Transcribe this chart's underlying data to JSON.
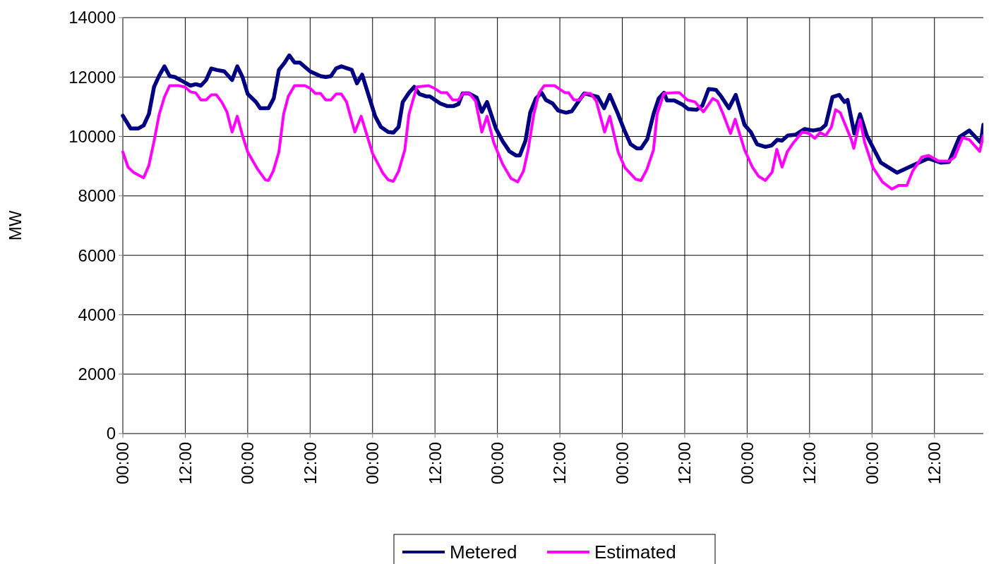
{
  "chart_data": {
    "type": "line",
    "ylabel": "MW",
    "xlim": [
      "--01-01T00:00",
      "--01-07T21:24"
    ],
    "ylim": [
      0,
      14000
    ],
    "xticks": [
      {
        "value": "--01-01T00:00",
        "label": "00:00"
      },
      {
        "value": "--01-01T12:00",
        "label": "12:00"
      },
      {
        "value": "--01-02T00:00",
        "label": "00:00"
      },
      {
        "value": "--01-02T12:00",
        "label": "12:00"
      },
      {
        "value": "--01-03T00:00",
        "label": "00:00"
      },
      {
        "value": "--01-03T12:00",
        "label": "12:00"
      },
      {
        "value": "--01-04T00:00",
        "label": "00:00"
      },
      {
        "value": "--01-04T12:00",
        "label": "12:00"
      },
      {
        "value": "--01-05T00:00",
        "label": "00:00"
      },
      {
        "value": "--01-05T12:00",
        "label": "12:00"
      },
      {
        "value": "--01-06T00:00",
        "label": "00:00"
      },
      {
        "value": "--01-06T12:00",
        "label": "12:00"
      },
      {
        "value": "--01-07T00:00",
        "label": "00:00"
      },
      {
        "value": "--01-07T12:00",
        "label": "12:00"
      }
    ],
    "yticks": [
      0,
      2000,
      4000,
      6000,
      8000,
      10000,
      12000,
      14000
    ],
    "grid": true,
    "legend": "bottom",
    "line_style": "solid",
    "marker": "none",
    "series": [
      {
        "name": "Metered",
        "color": "#000080",
        "x": [
          "--01-01T00:00",
          "--01-01T01:30",
          "--01-01T03:00",
          "--01-01T04:00",
          "--01-01T05:00",
          "--01-01T06:00",
          "--01-01T07:00",
          "--01-01T08:00",
          "--01-01T09:00",
          "--01-01T10:00",
          "--01-01T12:00",
          "--01-01T13:00",
          "--01-01T14:00",
          "--01-01T15:00",
          "--01-01T16:00",
          "--01-01T17:00",
          "--01-01T18:00",
          "--01-01T19:30",
          "--01-01T21:00",
          "--01-01T22:00",
          "--01-01T23:00",
          "--01-02T00:00",
          "--01-02T01:36",
          "--01-02T02:24",
          "--01-02T04:00",
          "--01-02T05:00",
          "--01-02T06:00",
          "--01-02T07:00",
          "--01-02T08:00",
          "--01-02T09:00",
          "--01-02T10:00",
          "--01-02T12:00",
          "--01-02T14:00",
          "--01-02T15:00",
          "--01-02T16:00",
          "--01-02T17:00",
          "--01-02T18:00",
          "--01-02T20:00",
          "--01-02T21:00",
          "--01-02T22:00",
          "--01-02T23:18",
          "--01-03T00:30",
          "--01-03T01:36",
          "--01-03T03:00",
          "--01-03T04:00",
          "--01-03T05:00",
          "--01-03T05:48",
          "--01-03T07:00",
          "--01-03T08:00",
          "--01-03T09:00",
          "--01-03T10:18",
          "--01-03T11:00",
          "--01-03T13:00",
          "--01-03T14:24",
          "--01-03T15:30",
          "--01-03T16:30",
          "--01-03T17:18",
          "--01-03T18:30",
          "--01-03T20:00",
          "--01-03T21:00",
          "--01-03T22:00",
          "--01-03T23:42",
          "--01-04T01:00",
          "--01-04T02:18",
          "--01-04T03:36",
          "--01-04T04:18",
          "--01-04T05:24",
          "--01-04T06:18",
          "--01-04T07:24",
          "--01-04T08:30",
          "--01-04T09:18",
          "--01-04T10:36",
          "--01-04T11:42",
          "--01-04T13:12",
          "--01-04T14:18",
          "--01-04T15:30",
          "--01-04T16:42",
          "--01-04T19:18",
          "--01-04T20:30",
          "--01-04T21:36",
          "--01-04T23:00",
          "--01-05T00:18",
          "--01-05T01:36",
          "--01-05T02:48",
          "--01-05T03:36",
          "--01-05T04:48",
          "--01-05T06:00",
          "--01-05T07:00",
          "--01-05T08:00",
          "--01-05T08:36",
          "--01-05T10:00",
          "--01-05T11:36",
          "--01-05T12:42",
          "--01-05T14:18",
          "--01-05T15:24",
          "--01-05T16:36",
          "--01-05T18:00",
          "--01-05T19:00",
          "--01-05T20:30",
          "--01-05T21:48",
          "--01-05T23:30",
          "--01-06T00:42",
          "--01-06T01:54",
          "--01-06T03:30",
          "--01-06T04:42",
          "--01-06T05:48",
          "--01-06T06:42",
          "--01-06T07:48",
          "--01-06T09:18",
          "--01-06T11:00",
          "--01-06T12:42",
          "--01-06T14:12",
          "--01-06T15:06",
          "--01-06T16:24",
          "--01-06T17:42",
          "--01-06T18:42",
          "--01-06T19:18",
          "--01-06T20:36",
          "--01-06T21:42",
          "--01-06T23:00",
          "--01-07T01:42",
          "--01-07T04:48",
          "--01-07T07:30",
          "--01-07T10:48",
          "--01-07T13:12",
          "--01-07T14:48",
          "--01-07T16:48",
          "--01-07T18:42",
          "--01-07T20:54",
          "--01-07T21:24"
        ],
        "values": [
          10700,
          10270,
          10270,
          10370,
          10750,
          11670,
          12050,
          12360,
          12030,
          12000,
          11810,
          11710,
          11760,
          11710,
          11900,
          12290,
          12240,
          12190,
          11900,
          12360,
          12000,
          11430,
          11160,
          10950,
          10950,
          11280,
          12240,
          12460,
          12730,
          12490,
          12490,
          12190,
          12030,
          12000,
          12030,
          12290,
          12360,
          12240,
          11790,
          12080,
          11350,
          10680,
          10320,
          10150,
          10130,
          10320,
          11160,
          11470,
          11670,
          11430,
          11350,
          11350,
          11110,
          11020,
          11020,
          11090,
          11450,
          11450,
          11310,
          10830,
          11160,
          10270,
          9840,
          9500,
          9360,
          9360,
          9860,
          10800,
          11280,
          11470,
          11230,
          11110,
          10870,
          10800,
          10850,
          11160,
          11450,
          11330,
          10950,
          11400,
          10830,
          10250,
          9740,
          9600,
          9600,
          9910,
          10750,
          11280,
          11470,
          11210,
          11210,
          11070,
          10920,
          10900,
          11040,
          11600,
          11570,
          11350,
          10950,
          11400,
          10390,
          10150,
          9740,
          9650,
          9700,
          9890,
          9860,
          10030,
          10060,
          10250,
          10200,
          10250,
          10390,
          11330,
          11400,
          11160,
          11230,
          10100,
          10750,
          10030,
          9120,
          8780,
          9000,
          9260,
          9120,
          9140,
          9980,
          10200,
          9790,
          10390
        ]
      },
      {
        "name": "Estimated",
        "color": "#ff00ff",
        "x": [
          "--01-01T00:00",
          "--01-01T01:00",
          "--01-01T02:00",
          "--01-01T04:00",
          "--01-01T05:00",
          "--01-01T06:00",
          "--01-01T07:00",
          "--01-01T08:00",
          "--01-01T09:00",
          "--01-01T10:42",
          "--01-01T11:54",
          "--01-01T13:00",
          "--01-01T14:00",
          "--01-01T15:00",
          "--01-01T16:00",
          "--01-01T17:00",
          "--01-01T18:00",
          "--01-01T19:00",
          "--01-01T20:00",
          "--01-01T21:00",
          "--01-01T22:00",
          "--01-01T23:00",
          "--01-02T00:00",
          "--01-02T01:54",
          "--01-02T03:24",
          "--01-02T04:00",
          "--01-02T04:54",
          "--01-02T06:00",
          "--01-02T06:54",
          "--01-02T07:48",
          "--01-02T09:00",
          "--01-02T11:00",
          "--01-02T12:00",
          "--01-02T13:00",
          "--01-02T14:00",
          "--01-02T15:00",
          "--01-02T16:00",
          "--01-02T17:00",
          "--01-02T18:00",
          "--01-02T19:00",
          "--01-02T20:36",
          "--01-02T21:48",
          "--01-03T00:00",
          "--01-03T02:00",
          "--01-03T03:00",
          "--01-03T04:00",
          "--01-03T05:00",
          "--01-03T06:12",
          "--01-03T07:00",
          "--01-03T08:30",
          "--01-03T10:48",
          "--01-03T11:54",
          "--01-03T13:12",
          "--01-03T14:18",
          "--01-03T15:24",
          "--01-03T16:30",
          "--01-03T17:24",
          "--01-03T18:36",
          "--01-03T19:48",
          "--01-03T21:00",
          "--01-03T22:00",
          "--01-03T23:18",
          "--01-04T01:00",
          "--01-04T02:36",
          "--01-04T03:54",
          "--01-04T05:00",
          "--01-04T05:54",
          "--01-04T07:00",
          "--01-04T08:00",
          "--01-04T09:00",
          "--01-04T11:00",
          "--01-04T12:00",
          "--01-04T13:00",
          "--01-04T13:42",
          "--01-04T14:42",
          "--01-04T15:48",
          "--01-04T16:48",
          "--01-04T17:54",
          "--01-04T19:00",
          "--01-04T20:36",
          "--01-04T21:36",
          "--01-04T23:12",
          "--01-05T00:30",
          "--01-05T02:36",
          "--01-05T03:36",
          "--01-05T04:42",
          "--01-05T06:00",
          "--01-05T06:42",
          "--01-05T08:00",
          "--01-05T09:48",
          "--01-05T11:00",
          "--01-05T12:30",
          "--01-05T14:00",
          "--01-05T15:36",
          "--01-05T17:24",
          "--01-05T18:18",
          "--01-05T19:24",
          "--01-05T20:48",
          "--01-05T21:42",
          "--01-05T23:30",
          "--01-06T01:00",
          "--01-06T02:12",
          "--01-06T03:30",
          "--01-06T04:48",
          "--01-06T05:42",
          "--01-06T06:42",
          "--01-06T07:42",
          "--01-06T08:54",
          "--01-06T10:36",
          "--01-06T11:54",
          "--01-06T13:00",
          "--01-06T14:00",
          "--01-06T15:06",
          "--01-06T16:12",
          "--01-06T17:00",
          "--01-06T17:54",
          "--01-06T18:42",
          "--01-06T20:00",
          "--01-06T20:30",
          "--01-06T21:42",
          "--01-06T22:36",
          "--01-07T00:12",
          "--01-07T02:00",
          "--01-07T03:48",
          "--01-07T05:06",
          "--01-07T06:42",
          "--01-07T07:48",
          "--01-07T09:36",
          "--01-07T10:54",
          "--01-07T12:48",
          "--01-07T14:48",
          "--01-07T15:54",
          "--01-07T17:24",
          "--01-07T18:42",
          "--01-07T20:42",
          "--01-07T21:24"
        ],
        "values": [
          9480,
          8970,
          8800,
          8610,
          9020,
          9840,
          10750,
          11330,
          11710,
          11710,
          11670,
          11500,
          11470,
          11230,
          11230,
          11400,
          11400,
          11160,
          10830,
          10150,
          10680,
          10030,
          9480,
          8900,
          8540,
          8520,
          8830,
          9480,
          10750,
          11350,
          11710,
          11710,
          11620,
          11450,
          11450,
          11230,
          11230,
          11430,
          11430,
          11160,
          10150,
          10680,
          9430,
          8760,
          8540,
          8490,
          8830,
          9550,
          10750,
          11670,
          11710,
          11620,
          11470,
          11470,
          11230,
          11230,
          11450,
          11450,
          11190,
          10150,
          10680,
          9790,
          9070,
          8590,
          8470,
          8830,
          9550,
          10750,
          11470,
          11710,
          11710,
          11590,
          11470,
          11470,
          11230,
          11230,
          11450,
          11450,
          11190,
          10150,
          10680,
          9480,
          8950,
          8560,
          8520,
          8880,
          9550,
          10750,
          11450,
          11470,
          11470,
          11230,
          11160,
          10830,
          11280,
          11190,
          10750,
          10100,
          10580,
          9550,
          8970,
          8660,
          8520,
          8800,
          9570,
          8970,
          9480,
          9790,
          10150,
          10100,
          9940,
          10130,
          10030,
          10320,
          10900,
          10800,
          10460,
          9910,
          9600,
          10560,
          9790,
          8950,
          8470,
          8230,
          8350,
          8350,
          8830,
          9310,
          9360,
          9170,
          9170,
          9310,
          9960,
          9890,
          9500,
          10030
        ]
      }
    ]
  }
}
